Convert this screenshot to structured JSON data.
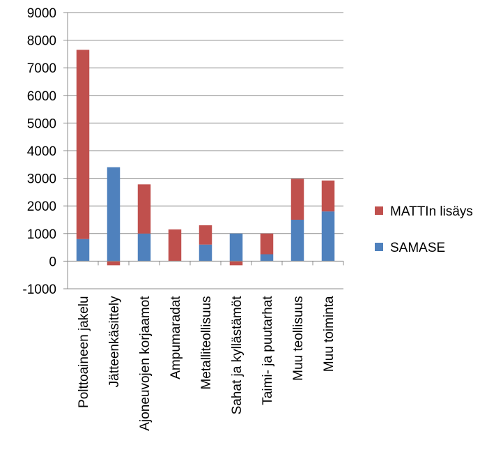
{
  "chart_data": {
    "type": "bar",
    "stacked": true,
    "title": "",
    "xlabel": "",
    "ylabel": "",
    "ylim": [
      -1000,
      9000
    ],
    "ytick_step": 1000,
    "yticks": [
      "-1000",
      "0",
      "1000",
      "2000",
      "3000",
      "4000",
      "5000",
      "6000",
      "7000",
      "8000",
      "9000"
    ],
    "grid": true,
    "legend_position": "right",
    "categories": [
      "Polttoaineen jakelu",
      "Jätteenkäsittely",
      "Ajoneuvojen korjaamot",
      "Ampumaradat",
      "Metalliteollisuus",
      "Sahat ja kyllästämöt",
      "Taimi- ja puutarhat",
      "Muu teollisuus",
      "Muu toiminta"
    ],
    "series": [
      {
        "name": "SAMASE",
        "color": "#4F81BD",
        "values": [
          800,
          3400,
          1000,
          0,
          600,
          1000,
          250,
          1500,
          1800
        ]
      },
      {
        "name": "MATTIn lisäys",
        "color": "#C0504D",
        "values": [
          6850,
          -150,
          1780,
          1150,
          700,
          -150,
          750,
          1480,
          1120
        ]
      }
    ],
    "legend": [
      {
        "name": "MATTIn lisäys",
        "color": "#C0504D"
      },
      {
        "name": "SAMASE",
        "color": "#4F81BD"
      }
    ]
  }
}
